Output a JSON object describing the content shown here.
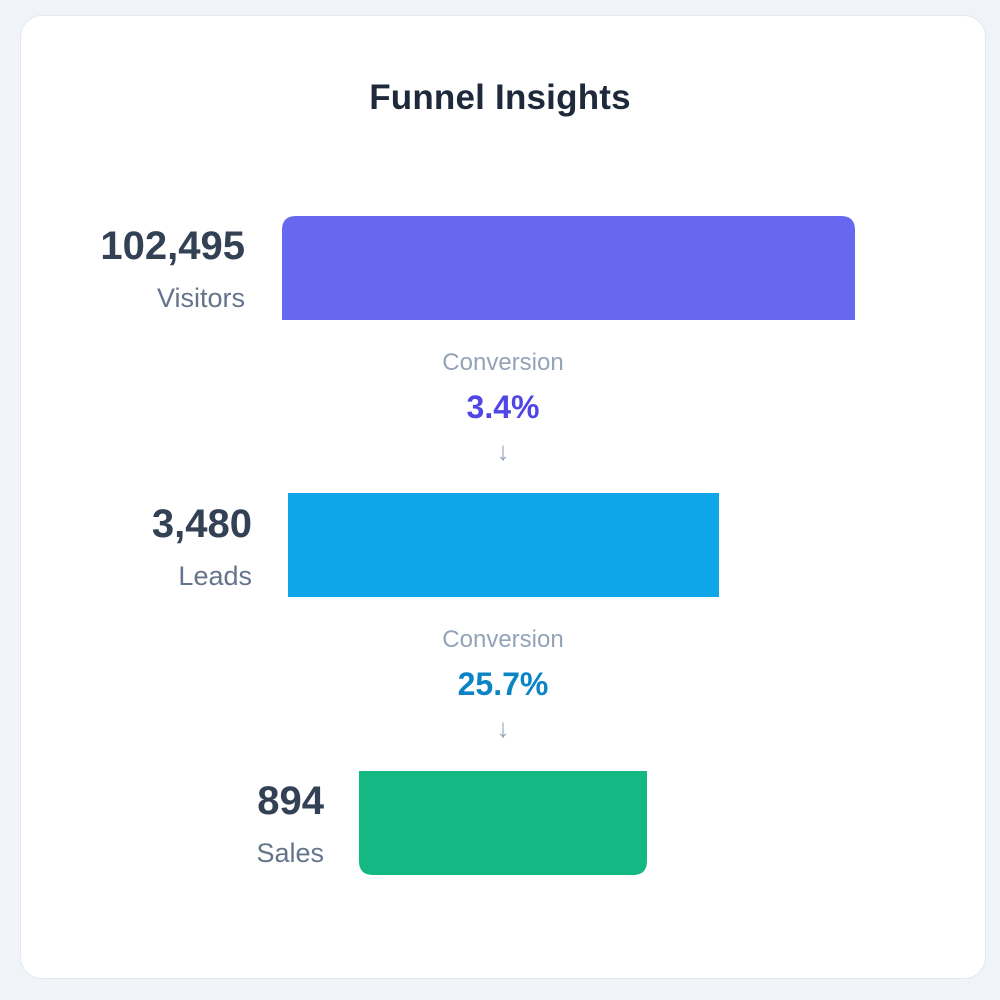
{
  "chart_data": {
    "type": "bar",
    "title": "Funnel Insights",
    "orientation": "horizontal-funnel",
    "categories": [
      "Visitors",
      "Leads",
      "Sales"
    ],
    "values": [
      102495,
      3480,
      894
    ],
    "value_labels": [
      "102,495",
      "3,480",
      "894"
    ],
    "colors": [
      "#6767f0",
      "#0ea5e9",
      "#14b883"
    ],
    "conversions": [
      {
        "label": "Conversion",
        "value": "3.4%",
        "color": "#5046e5"
      },
      {
        "label": "Conversion",
        "value": "25.7%",
        "color": "#0b84c5"
      }
    ],
    "grid": false,
    "legend": false
  }
}
